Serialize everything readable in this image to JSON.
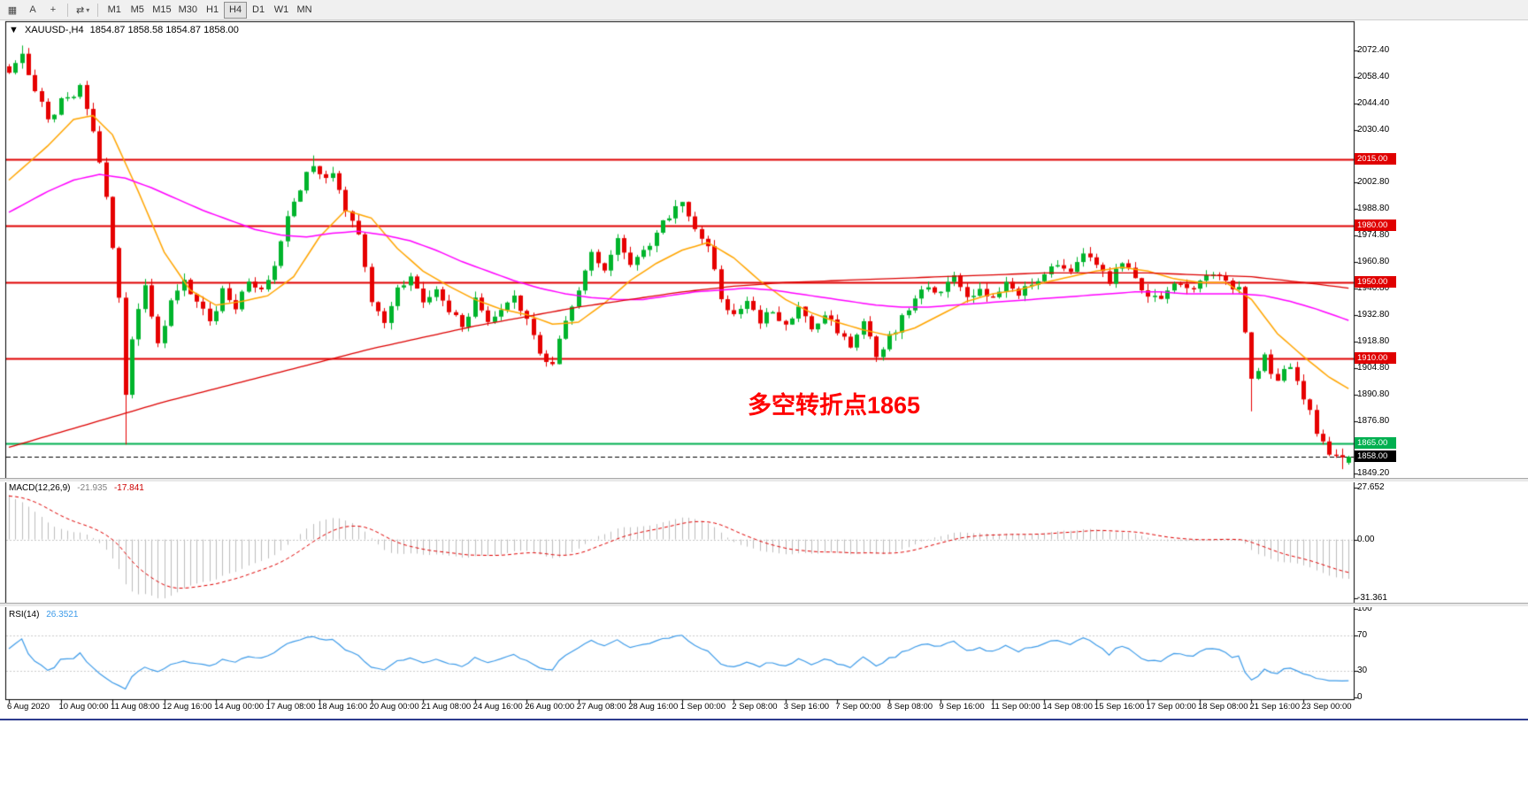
{
  "toolbar": {
    "icon_buttons": [
      {
        "name": "tick-chart",
        "glyph": "▦"
      },
      {
        "name": "text-tool",
        "glyph": "A"
      },
      {
        "name": "crosshair",
        "glyph": "+"
      }
    ],
    "indicator_dropdown": {
      "glyph": "⇄",
      "caret": "▾"
    },
    "timeframes": [
      "M1",
      "M5",
      "M15",
      "M30",
      "H1",
      "H4",
      "D1",
      "W1",
      "MN"
    ],
    "active_timeframe": "H4"
  },
  "chart": {
    "collapse_icon": "▼",
    "title": "XAUUSD-,H4",
    "ohlc_text": "1854.87 1858.58 1854.87 1858.00"
  },
  "chart_data": {
    "type": "candlestick",
    "symbol": "XAUUSD-",
    "timeframe": "H4",
    "current_bar": {
      "open": 1854.87,
      "high": 1858.58,
      "low": 1854.87,
      "close": 1858.0
    },
    "bar_count": 208,
    "bars_per_label": 8,
    "x_labels": [
      "6 Aug 2020",
      "10 Aug 00:00",
      "11 Aug 08:00",
      "12 Aug 16:00",
      "14 Aug 00:00",
      "17 Aug 08:00",
      "18 Aug 16:00",
      "20 Aug 00:00",
      "21 Aug 08:00",
      "24 Aug 16:00",
      "26 Aug 00:00",
      "27 Aug 08:00",
      "28 Aug 16:00",
      "1 Sep 00:00",
      "2 Sep 08:00",
      "3 Sep 16:00",
      "7 Sep 00:00",
      "8 Sep 08:00",
      "9 Sep 16:00",
      "11 Sep 00:00",
      "14 Sep 08:00",
      "15 Sep 16:00",
      "17 Sep 00:00",
      "18 Sep 08:00",
      "21 Sep 16:00",
      "23 Sep 00:00"
    ],
    "y_axis": {
      "max": 2072.4,
      "min": 1849.2,
      "ticks": [
        "2072.40",
        "2058.40",
        "2044.40",
        "2030.40",
        "2002.80",
        "1988.80",
        "1974.80",
        "1960.80",
        "1946.80",
        "1932.80",
        "1918.80",
        "1904.80",
        "1890.80",
        "1876.80",
        "1849.20"
      ]
    },
    "price_path": [
      [
        0,
        2060
      ],
      [
        2,
        2070
      ],
      [
        4,
        2052
      ],
      [
        6,
        2036
      ],
      [
        8,
        2045
      ],
      [
        11,
        2052
      ],
      [
        13,
        2030
      ],
      [
        15,
        1996
      ],
      [
        17,
        1940
      ],
      [
        18,
        1890
      ],
      [
        19,
        1922
      ],
      [
        21,
        1948
      ],
      [
        23,
        1916
      ],
      [
        25,
        1940
      ],
      [
        27,
        1952
      ],
      [
        29,
        1940
      ],
      [
        31,
        1928
      ],
      [
        33,
        1946
      ],
      [
        35,
        1936
      ],
      [
        37,
        1950
      ],
      [
        39,
        1944
      ],
      [
        41,
        1958
      ],
      [
        43,
        1984
      ],
      [
        45,
        2000
      ],
      [
        47,
        2013
      ],
      [
        49,
        2004
      ],
      [
        50,
        2010
      ],
      [
        52,
        1990
      ],
      [
        54,
        1974
      ],
      [
        56,
        1940
      ],
      [
        58,
        1930
      ],
      [
        60,
        1946
      ],
      [
        62,
        1954
      ],
      [
        64,
        1940
      ],
      [
        66,
        1947
      ],
      [
        68,
        1934
      ],
      [
        70,
        1928
      ],
      [
        72,
        1940
      ],
      [
        74,
        1930
      ],
      [
        76,
        1933
      ],
      [
        78,
        1941
      ],
      [
        80,
        1930
      ],
      [
        82,
        1912
      ],
      [
        84,
        1906
      ],
      [
        86,
        1930
      ],
      [
        88,
        1946
      ],
      [
        90,
        1964
      ],
      [
        92,
        1955
      ],
      [
        94,
        1971
      ],
      [
        96,
        1960
      ],
      [
        98,
        1966
      ],
      [
        100,
        1976
      ],
      [
        102,
        1986
      ],
      [
        104,
        1990
      ],
      [
        106,
        1978
      ],
      [
        108,
        1970
      ],
      [
        110,
        1942
      ],
      [
        112,
        1932
      ],
      [
        114,
        1941
      ],
      [
        116,
        1929
      ],
      [
        118,
        1936
      ],
      [
        120,
        1928
      ],
      [
        122,
        1936
      ],
      [
        124,
        1925
      ],
      [
        126,
        1931
      ],
      [
        128,
        1925
      ],
      [
        130,
        1915
      ],
      [
        132,
        1928
      ],
      [
        134,
        1910
      ],
      [
        136,
        1921
      ],
      [
        138,
        1931
      ],
      [
        140,
        1941
      ],
      [
        142,
        1948
      ],
      [
        144,
        1944
      ],
      [
        146,
        1955
      ],
      [
        148,
        1942
      ],
      [
        150,
        1946
      ],
      [
        152,
        1940
      ],
      [
        154,
        1948
      ],
      [
        156,
        1944
      ],
      [
        158,
        1950
      ],
      [
        160,
        1956
      ],
      [
        162,
        1960
      ],
      [
        164,
        1954
      ],
      [
        166,
        1966
      ],
      [
        168,
        1957
      ],
      [
        170,
        1950
      ],
      [
        172,
        1961
      ],
      [
        174,
        1950
      ],
      [
        176,
        1944
      ],
      [
        178,
        1939
      ],
      [
        180,
        1950
      ],
      [
        182,
        1945
      ],
      [
        184,
        1951
      ],
      [
        186,
        1955
      ],
      [
        188,
        1950
      ],
      [
        190,
        1946
      ],
      [
        192,
        1901
      ],
      [
        194,
        1910
      ],
      [
        196,
        1898
      ],
      [
        198,
        1906
      ],
      [
        200,
        1890
      ],
      [
        202,
        1871
      ],
      [
        204,
        1861
      ],
      [
        206,
        1857
      ],
      [
        207,
        1858
      ]
    ],
    "levels": [
      {
        "price": 2015.0,
        "label": "2015.00",
        "color": "#e00000",
        "style": "solid"
      },
      {
        "price": 1980.0,
        "label": "1980.00",
        "color": "#e00000",
        "style": "solid"
      },
      {
        "price": 1950.0,
        "label": "1950.00",
        "color": "#e00000",
        "style": "solid"
      },
      {
        "price": 1910.0,
        "label": "1910.00",
        "color": "#e00000",
        "style": "solid"
      },
      {
        "price": 1865.0,
        "label": "1865.00",
        "color": "#00b050",
        "style": "solid"
      },
      {
        "price": 1858.0,
        "label": "1858.00",
        "color": "#000000",
        "style": "dashed"
      }
    ],
    "moving_averages": [
      {
        "name": "ma-fast",
        "color": "#ffa500",
        "width": 1.5,
        "points": [
          [
            0,
            2004
          ],
          [
            6,
            2022
          ],
          [
            10,
            2036
          ],
          [
            13,
            2038
          ],
          [
            16,
            2028
          ],
          [
            20,
            1998
          ],
          [
            24,
            1966
          ],
          [
            28,
            1946
          ],
          [
            32,
            1938
          ],
          [
            36,
            1940
          ],
          [
            40,
            1943
          ],
          [
            44,
            1953
          ],
          [
            48,
            1974
          ],
          [
            52,
            1988
          ],
          [
            56,
            1984
          ],
          [
            60,
            1968
          ],
          [
            64,
            1956
          ],
          [
            68,
            1948
          ],
          [
            72,
            1941
          ],
          [
            76,
            1936
          ],
          [
            80,
            1933
          ],
          [
            84,
            1928
          ],
          [
            88,
            1929
          ],
          [
            92,
            1939
          ],
          [
            96,
            1951
          ],
          [
            100,
            1960
          ],
          [
            104,
            1967
          ],
          [
            108,
            1971
          ],
          [
            112,
            1963
          ],
          [
            116,
            1951
          ],
          [
            120,
            1941
          ],
          [
            124,
            1934
          ],
          [
            128,
            1929
          ],
          [
            132,
            1925
          ],
          [
            136,
            1922
          ],
          [
            140,
            1926
          ],
          [
            144,
            1933
          ],
          [
            148,
            1940
          ],
          [
            152,
            1944
          ],
          [
            156,
            1946
          ],
          [
            160,
            1950
          ],
          [
            164,
            1953
          ],
          [
            168,
            1956
          ],
          [
            172,
            1958
          ],
          [
            176,
            1956
          ],
          [
            180,
            1952
          ],
          [
            184,
            1950
          ],
          [
            188,
            1950
          ],
          [
            192,
            1941
          ],
          [
            196,
            1923
          ],
          [
            200,
            1911
          ],
          [
            204,
            1900
          ],
          [
            207,
            1894
          ]
        ]
      },
      {
        "name": "ma-medium",
        "color": "#ff00ff",
        "width": 1.5,
        "points": [
          [
            0,
            1987
          ],
          [
            6,
            1998
          ],
          [
            10,
            2004
          ],
          [
            14,
            2007
          ],
          [
            18,
            2005
          ],
          [
            22,
            2000
          ],
          [
            26,
            1994
          ],
          [
            30,
            1988
          ],
          [
            34,
            1983
          ],
          [
            38,
            1978
          ],
          [
            42,
            1975
          ],
          [
            46,
            1974
          ],
          [
            50,
            1976
          ],
          [
            54,
            1977
          ],
          [
            58,
            1975
          ],
          [
            62,
            1972
          ],
          [
            66,
            1967
          ],
          [
            70,
            1961
          ],
          [
            74,
            1956
          ],
          [
            78,
            1951
          ],
          [
            82,
            1947
          ],
          [
            86,
            1944
          ],
          [
            90,
            1942
          ],
          [
            94,
            1941
          ],
          [
            98,
            1941
          ],
          [
            102,
            1943
          ],
          [
            106,
            1945
          ],
          [
            110,
            1946
          ],
          [
            114,
            1947
          ],
          [
            118,
            1946
          ],
          [
            122,
            1944
          ],
          [
            126,
            1942
          ],
          [
            130,
            1940
          ],
          [
            134,
            1938
          ],
          [
            138,
            1937
          ],
          [
            142,
            1937
          ],
          [
            146,
            1938
          ],
          [
            150,
            1939
          ],
          [
            154,
            1940
          ],
          [
            158,
            1941
          ],
          [
            162,
            1942
          ],
          [
            166,
            1943
          ],
          [
            170,
            1944
          ],
          [
            174,
            1945
          ],
          [
            178,
            1945
          ],
          [
            182,
            1944
          ],
          [
            186,
            1944
          ],
          [
            190,
            1944
          ],
          [
            194,
            1943
          ],
          [
            198,
            1940
          ],
          [
            202,
            1936
          ],
          [
            207,
            1930
          ]
        ]
      },
      {
        "name": "ma-slow",
        "color": "#dd0000",
        "width": 1.3,
        "points": [
          [
            0,
            1863
          ],
          [
            8,
            1871
          ],
          [
            16,
            1879
          ],
          [
            24,
            1887
          ],
          [
            32,
            1894
          ],
          [
            40,
            1901
          ],
          [
            48,
            1908
          ],
          [
            56,
            1915
          ],
          [
            64,
            1921
          ],
          [
            72,
            1927
          ],
          [
            80,
            1932
          ],
          [
            88,
            1937
          ],
          [
            96,
            1941
          ],
          [
            104,
            1945
          ],
          [
            112,
            1948
          ],
          [
            120,
            1950
          ],
          [
            128,
            1951
          ],
          [
            136,
            1952
          ],
          [
            144,
            1953
          ],
          [
            152,
            1954
          ],
          [
            160,
            1955
          ],
          [
            168,
            1955
          ],
          [
            176,
            1955
          ],
          [
            184,
            1954
          ],
          [
            192,
            1953
          ],
          [
            200,
            1950
          ],
          [
            207,
            1947
          ]
        ]
      }
    ],
    "annotation": {
      "text": "多空转折点1865",
      "color": "#ff0000"
    },
    "indicators": [
      {
        "name": "MACD",
        "title": "MACD(12,26,9)",
        "value_main": "-21.935",
        "value_signal": "-17.841",
        "scale": [
          "27.652",
          "0.00",
          "-31.361"
        ]
      },
      {
        "name": "RSI",
        "title": "RSI(14)",
        "value": "26.3521",
        "scale": [
          "100",
          "70",
          "30",
          "0"
        ]
      }
    ],
    "colors": {
      "bull": "#00b42c",
      "bear": "#e60000",
      "rsi": "#3d9be9",
      "macd_hist": "#bdbdbd",
      "macd_signal": "#e00000"
    }
  }
}
